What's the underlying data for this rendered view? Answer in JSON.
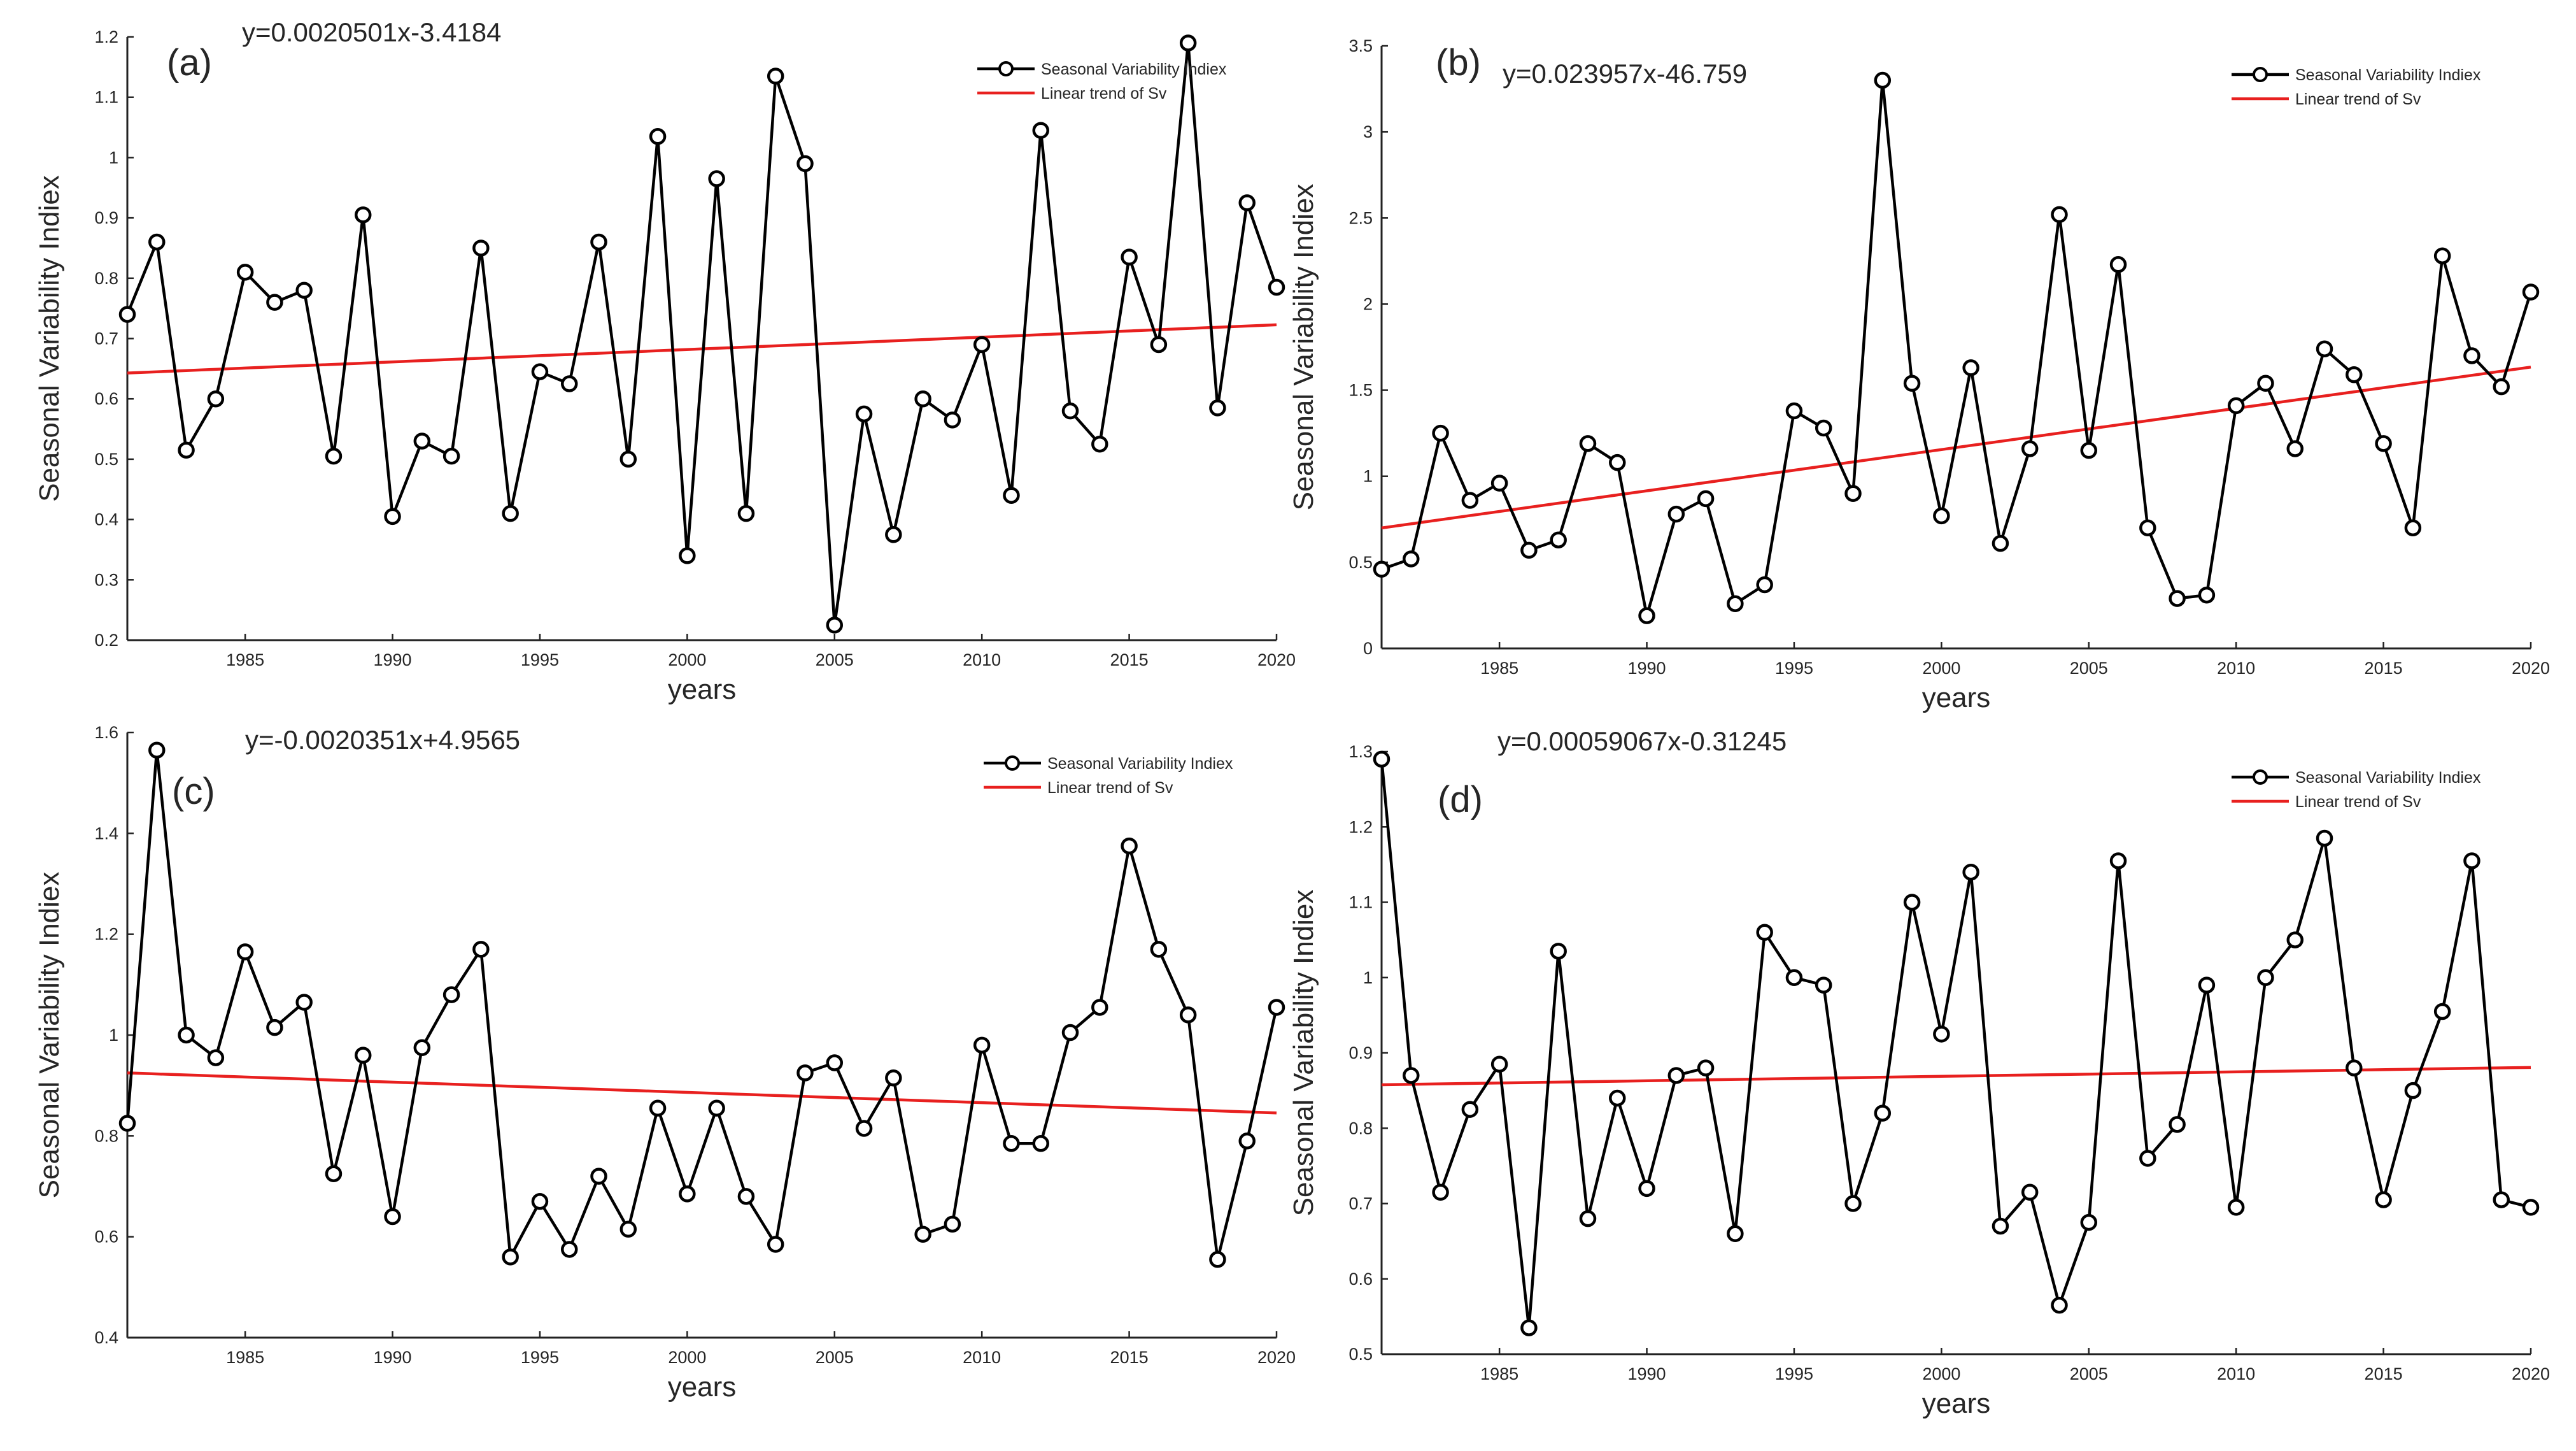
{
  "chart_data": [
    {
      "type": "line",
      "panel_label": "(a)",
      "equation": "y=0.0020501x-3.4184",
      "xlabel": "years",
      "ylabel": "Seasonal Variability Indiex",
      "xlim": [
        1981,
        2020
      ],
      "ylim": [
        0.2,
        1.2
      ],
      "xticks": [
        1985,
        1990,
        1995,
        2000,
        2005,
        2010,
        2015,
        2020
      ],
      "yticks": [
        "0.2",
        "0.3",
        "0.4",
        "0.5",
        "0.6",
        "0.7",
        "0.8",
        "0.9",
        "1",
        "1.1",
        "1.2"
      ],
      "legend": [
        "Seasonal Variability Indiex",
        "Linear trend of Sv"
      ],
      "legend_position": "top-right",
      "x": [
        1981,
        1982,
        1983,
        1984,
        1985,
        1986,
        1987,
        1988,
        1989,
        1990,
        1991,
        1992,
        1993,
        1994,
        1995,
        1996,
        1997,
        1998,
        1999,
        2000,
        2001,
        2002,
        2003,
        2004,
        2005,
        2006,
        2007,
        2008,
        2009,
        2010,
        2011,
        2012,
        2013,
        2014,
        2015,
        2016,
        2017,
        2018,
        2019,
        2020
      ],
      "values": [
        0.74,
        0.86,
        0.515,
        0.6,
        0.81,
        0.76,
        0.78,
        0.505,
        0.905,
        0.405,
        0.53,
        0.505,
        0.85,
        0.41,
        0.645,
        0.625,
        0.86,
        0.5,
        1.035,
        0.34,
        0.965,
        0.41,
        1.135,
        0.99,
        0.225,
        0.575,
        0.375,
        0.6,
        0.565,
        0.69,
        0.44,
        1.045,
        0.58,
        0.525,
        0.835,
        0.69,
        1.19,
        0.585,
        0.925,
        0.785
      ],
      "trend": {
        "slope": 0.0020501,
        "intercept": -3.4184
      }
    },
    {
      "type": "line",
      "panel_label": "(b)",
      "equation": "y=0.023957x-46.759",
      "xlabel": "years",
      "ylabel": "Seasonal Variability Indiex",
      "xlim": [
        1981,
        2020
      ],
      "ylim": [
        0,
        3.5
      ],
      "xticks": [
        1985,
        1990,
        1995,
        2000,
        2005,
        2010,
        2015,
        2020
      ],
      "yticks": [
        "0",
        "0.5",
        "1",
        "1.5",
        "2",
        "2.5",
        "3",
        "3.5"
      ],
      "legend": [
        "Seasonal Variability Indiex",
        "Linear trend of Sv"
      ],
      "legend_position": "top-right",
      "x": [
        1981,
        1982,
        1983,
        1984,
        1985,
        1986,
        1987,
        1988,
        1989,
        1990,
        1991,
        1992,
        1993,
        1994,
        1995,
        1996,
        1997,
        1998,
        1999,
        2000,
        2001,
        2002,
        2003,
        2004,
        2005,
        2006,
        2007,
        2008,
        2009,
        2010,
        2011,
        2012,
        2013,
        2014,
        2015,
        2016,
        2017,
        2018,
        2019,
        2020
      ],
      "values": [
        0.46,
        0.52,
        1.25,
        0.86,
        0.96,
        0.57,
        0.63,
        1.19,
        1.08,
        0.19,
        0.78,
        0.87,
        0.26,
        0.37,
        1.38,
        1.28,
        0.9,
        3.3,
        1.54,
        0.77,
        1.63,
        0.61,
        1.16,
        2.52,
        1.15,
        2.23,
        0.7,
        0.29,
        0.31,
        1.41,
        1.54,
        1.16,
        1.74,
        1.59,
        1.19,
        0.7,
        2.28,
        1.7,
        1.52,
        2.07
      ],
      "trend": {
        "slope": 0.023957,
        "intercept": -46.759
      }
    },
    {
      "type": "line",
      "panel_label": "(c)",
      "equation": "y=-0.0020351x+4.9565",
      "xlabel": "years",
      "ylabel": "Seasonal Variability Indiex",
      "xlim": [
        1981,
        2020
      ],
      "ylim": [
        0.4,
        1.6
      ],
      "xticks": [
        1985,
        1990,
        1995,
        2000,
        2005,
        2010,
        2015,
        2020
      ],
      "yticks": [
        "0.4",
        "0.6",
        "0.8",
        "1",
        "1.2",
        "1.4",
        "1.6"
      ],
      "legend": [
        "Seasonal Variability Indiex",
        "Linear trend of Sv"
      ],
      "legend_position": "top-right",
      "x": [
        1981,
        1982,
        1983,
        1984,
        1985,
        1986,
        1987,
        1988,
        1989,
        1990,
        1991,
        1992,
        1993,
        1994,
        1995,
        1996,
        1997,
        1998,
        1999,
        2000,
        2001,
        2002,
        2003,
        2004,
        2005,
        2006,
        2007,
        2008,
        2009,
        2010,
        2011,
        2012,
        2013,
        2014,
        2015,
        2016,
        2017,
        2018,
        2019,
        2020
      ],
      "values": [
        0.825,
        1.565,
        1.0,
        0.955,
        1.165,
        1.015,
        1.065,
        0.725,
        0.96,
        0.64,
        0.975,
        1.08,
        1.17,
        0.56,
        0.67,
        0.575,
        0.72,
        0.615,
        0.855,
        0.685,
        0.855,
        0.68,
        0.585,
        0.925,
        0.945,
        0.815,
        0.915,
        0.605,
        0.625,
        0.98,
        0.785,
        0.785,
        1.005,
        1.055,
        1.375,
        1.17,
        1.04,
        0.555,
        0.79,
        1.055
      ],
      "trend": {
        "slope": -0.0020351,
        "intercept": 4.9565
      }
    },
    {
      "type": "line",
      "panel_label": "(d)",
      "equation": "y=0.00059067x-0.31245",
      "xlabel": "years",
      "ylabel": "Seasonal Variability Indiex",
      "xlim": [
        1981,
        2020
      ],
      "ylim": [
        0.5,
        1.3
      ],
      "xticks": [
        1985,
        1990,
        1995,
        2000,
        2005,
        2010,
        2015,
        2020
      ],
      "yticks": [
        "0.5",
        "0.6",
        "0.7",
        "0.8",
        "0.9",
        "1",
        "1.1",
        "1.2",
        "1.3"
      ],
      "legend": [
        "Seasonal Variability Indiex",
        "Linear trend of Sv"
      ],
      "legend_position": "top-right",
      "x": [
        1981,
        1982,
        1983,
        1984,
        1985,
        1986,
        1987,
        1988,
        1989,
        1990,
        1991,
        1992,
        1993,
        1994,
        1995,
        1996,
        1997,
        1998,
        1999,
        2000,
        2001,
        2002,
        2003,
        2004,
        2005,
        2006,
        2007,
        2008,
        2009,
        2010,
        2011,
        2012,
        2013,
        2014,
        2015,
        2016,
        2017,
        2018,
        2019,
        2020
      ],
      "values": [
        1.29,
        0.87,
        0.715,
        0.825,
        0.885,
        0.535,
        1.035,
        0.68,
        0.84,
        0.72,
        0.87,
        0.88,
        0.66,
        1.06,
        1.0,
        0.99,
        0.7,
        0.82,
        1.1,
        0.925,
        1.14,
        0.67,
        0.715,
        0.565,
        0.675,
        1.155,
        0.76,
        0.805,
        0.99,
        0.695,
        1.0,
        1.05,
        1.185,
        0.88,
        0.705,
        0.85,
        0.955,
        1.155,
        0.705,
        0.695
      ],
      "trend": {
        "slope": 0.00059067,
        "intercept": -0.31245
      }
    }
  ],
  "colors": {
    "series": "#000000",
    "trend": "#e8201f",
    "axis": "#222222",
    "text": "#262626"
  }
}
